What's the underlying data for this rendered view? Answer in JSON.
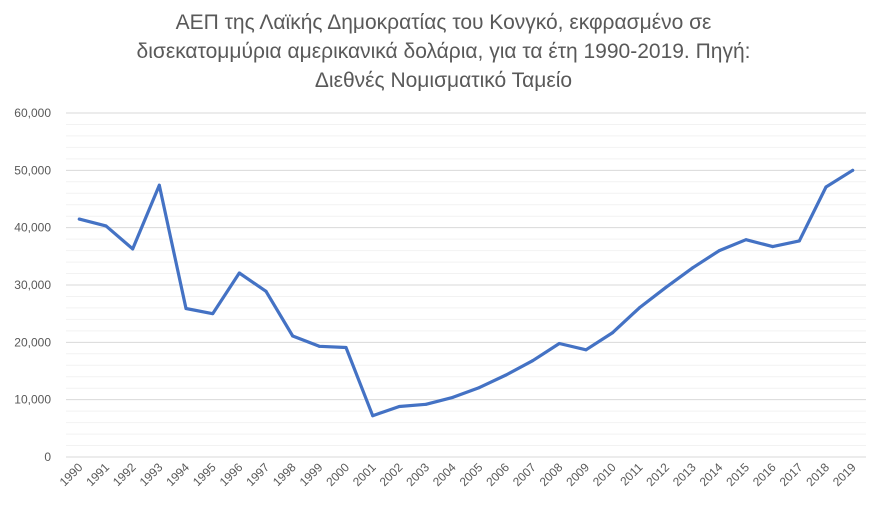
{
  "chart_data": {
    "type": "line",
    "title_lines": [
      "ΑΕΠ της Λαϊκής Δημοκρατίας του Κονγκό, εκφρασμένο σε",
      "δισεκατομμύρια αμερικανικά δολάρια, για τα έτη 1990-2019. Πηγή:",
      "Διεθνές Νομισματικό Ταμείο"
    ],
    "x": [
      "1990",
      "1991",
      "1992",
      "1993",
      "1994",
      "1995",
      "1996",
      "1997",
      "1998",
      "1999",
      "2000",
      "2001",
      "2002",
      "2003",
      "2004",
      "2005",
      "2006",
      "2007",
      "2008",
      "2009",
      "2010",
      "2011",
      "2012",
      "2013",
      "2014",
      "2015",
      "2016",
      "2017",
      "2018",
      "2019"
    ],
    "series": [
      {
        "values": [
          41500,
          40300,
          36300,
          47400,
          25900,
          25000,
          32100,
          28900,
          21100,
          19300,
          19100,
          7200,
          8800,
          9200,
          10400,
          12100,
          14300,
          16800,
          19800,
          18700,
          21700,
          26000,
          29600,
          33000,
          36000,
          37900,
          36700,
          37700,
          47100,
          50000
        ],
        "color": "#4472c4"
      }
    ],
    "ylim": [
      0,
      60000
    ],
    "y_ticks": [
      "0",
      "10,000",
      "20,000",
      "30,000",
      "40,000",
      "50,000",
      "60,000"
    ],
    "y_tick_values": [
      0,
      10000,
      20000,
      30000,
      40000,
      50000,
      60000
    ],
    "minor_step": 2000,
    "grid": true,
    "xlabel": "",
    "ylabel": ""
  }
}
